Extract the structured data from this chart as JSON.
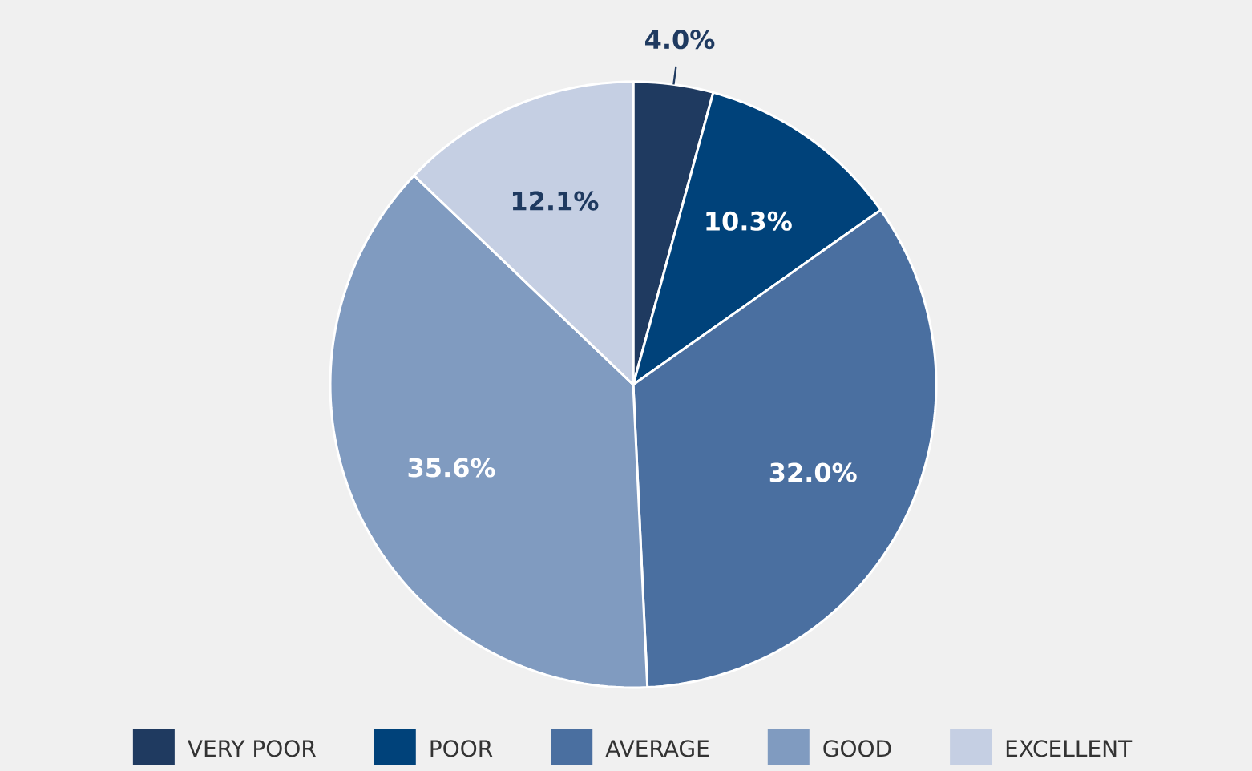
{
  "chart_data": {
    "type": "pie",
    "categories": [
      "VERY POOR",
      "POOR",
      "AVERAGE",
      "GOOD",
      "EXCELLENT"
    ],
    "values": [
      4.0,
      10.3,
      32.0,
      35.6,
      12.1
    ],
    "value_labels": [
      "4.0%",
      "10.3%",
      "32.0%",
      "35.6%",
      "12.1%"
    ],
    "colors": [
      "#1f3a60",
      "#00427a",
      "#4a6fa0",
      "#809bc0",
      "#c5cfe3"
    ],
    "legend": "bottom"
  }
}
